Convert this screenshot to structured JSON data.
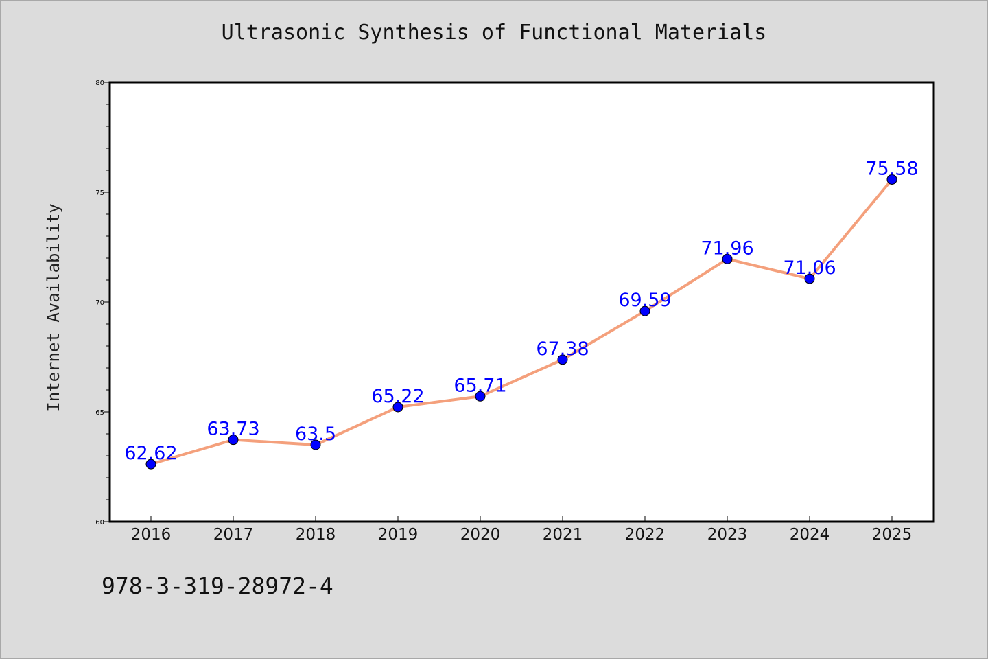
{
  "title": "Ultrasonic Synthesis of Functional Materials",
  "footer": "978-3-319-28972-4",
  "colors": {
    "line": "#f4a07c",
    "marker": "#0000ff",
    "label": "#0000ff",
    "background": "#dcdcdc",
    "plot_area": "#ffffff"
  },
  "chart_data": {
    "type": "line",
    "title": "Ultrasonic Synthesis of Functional Materials",
    "xlabel": "",
    "ylabel": "Internet Availability",
    "categories": [
      "2016",
      "2017",
      "2018",
      "2019",
      "2020",
      "2021",
      "2022",
      "2023",
      "2024",
      "2025"
    ],
    "values": [
      62.62,
      63.73,
      63.5,
      65.22,
      65.71,
      67.38,
      69.59,
      71.96,
      71.06,
      75.58
    ],
    "data_labels": [
      "62.62",
      "63.73",
      "63.5",
      "65.22",
      "65.71",
      "67.38",
      "69.59",
      "71.96",
      "71.06",
      "75.58"
    ],
    "ylim": [
      60,
      80
    ],
    "yticks": [
      "60",
      "65",
      "70",
      "75",
      "80"
    ],
    "grid": false,
    "legend": "none"
  }
}
